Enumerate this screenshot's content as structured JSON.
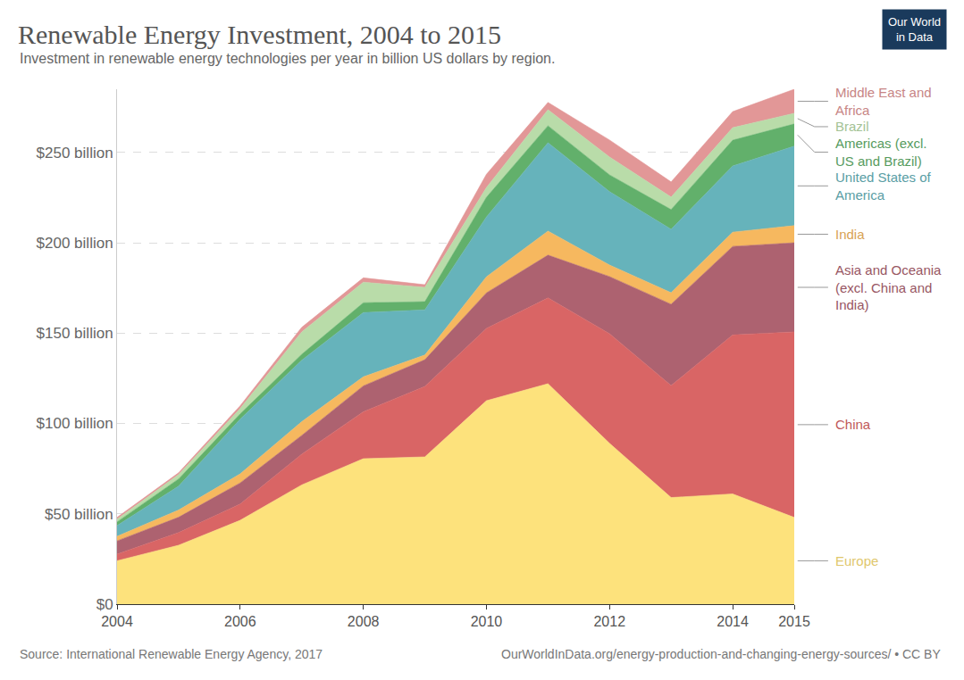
{
  "chart_data": {
    "type": "area",
    "stacked": true,
    "grid": true,
    "title": "Renewable Energy Investment, 2004 to 2015",
    "subtitle": "Investment in renewable energy technologies per year in billion US dollars by region.",
    "source": "Source: International Renewable Energy Agency, 2017",
    "credit": "OurWorldInData.org/energy-production-and-changing-energy-sources/ • CC BY",
    "logo": "Our World in Data",
    "x": [
      2004,
      2005,
      2006,
      2007,
      2008,
      2009,
      2010,
      2011,
      2012,
      2013,
      2014,
      2015
    ],
    "xlim": [
      2004,
      2015
    ],
    "xticks": [
      2004,
      2006,
      2008,
      2010,
      2012,
      2014,
      2015
    ],
    "ylim": [
      0,
      285
    ],
    "yticks": [
      {
        "value": 0,
        "label": "$0"
      },
      {
        "value": 50,
        "label": "$50 billion"
      },
      {
        "value": 100,
        "label": "$100 billion"
      },
      {
        "value": 150,
        "label": "$150 billion"
      },
      {
        "value": 200,
        "label": "$200 billion"
      },
      {
        "value": 250,
        "label": "$250 billion"
      }
    ],
    "series": [
      {
        "name": "Europe",
        "color": "#fde27c",
        "values": [
          24.0,
          32.6,
          46.4,
          66.0,
          80.5,
          81.5,
          112.6,
          122.0,
          89.0,
          59.0,
          61.0,
          48.0
        ]
      },
      {
        "name": "China",
        "color": "#d96565",
        "values": [
          3.7,
          7.0,
          9.0,
          17.0,
          26.0,
          39.0,
          40.0,
          47.5,
          60.7,
          62.0,
          88.0,
          102.7
        ]
      },
      {
        "name": "Asia and Oceania (excl. China and India)",
        "color": "#ad6270",
        "values": [
          7.3,
          8.5,
          11.7,
          10.4,
          14.3,
          14.8,
          19.7,
          23.7,
          31.6,
          45.0,
          49.0,
          49.3
        ]
      },
      {
        "name": "India",
        "color": "#f6b85f",
        "values": [
          2.5,
          4.0,
          5.0,
          7.6,
          5.0,
          2.6,
          8.9,
          13.3,
          6.4,
          6.4,
          7.9,
          9.5
        ]
      },
      {
        "name": "United States of America",
        "color": "#66b3bb",
        "values": [
          6.0,
          13.2,
          30.3,
          34.0,
          35.6,
          25.0,
          33.1,
          48.9,
          40.6,
          35.1,
          36.6,
          44.0
        ]
      },
      {
        "name": "Americas (excl. US and Brazil)",
        "color": "#62b06b",
        "values": [
          2.0,
          4.0,
          2.9,
          3.3,
          5.4,
          4.5,
          10.9,
          9.4,
          9.3,
          10.9,
          14.3,
          12.3
        ]
      },
      {
        "name": "Brazil",
        "color": "#b9dca9",
        "values": [
          1.5,
          2.4,
          3.0,
          12.4,
          11.4,
          7.9,
          5.4,
          8.9,
          9.9,
          6.9,
          6.9,
          5.9
        ]
      },
      {
        "name": "Middle East and Africa",
        "color": "#e29797",
        "values": [
          1.0,
          1.0,
          1.5,
          2.5,
          2.4,
          1.5,
          7.3,
          4.0,
          9.4,
          8.4,
          8.9,
          13.3
        ]
      }
    ]
  }
}
